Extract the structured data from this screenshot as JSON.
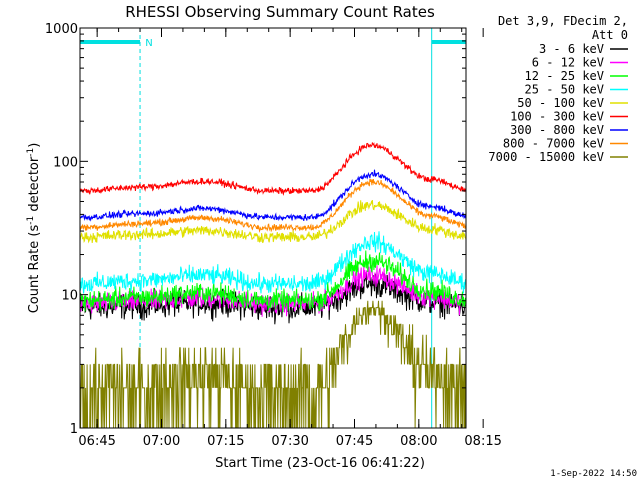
{
  "chart_data": {
    "type": "line",
    "title": "RHESSI Observing Summary Count Rates",
    "xlabel": "Start Time (23-Oct-16 06:41:22)",
    "ylabel": "Count Rate (s",
    "ylabel_sup": "-1",
    "ylabel_rest": " detector",
    "ylabel_sup2": "-1",
    "ylabel_close": ")",
    "y_scale": "log",
    "ylim": [
      1,
      1000
    ],
    "y_ticks": [
      {
        "value": 1,
        "label": "1"
      },
      {
        "value": 10,
        "label": "10"
      },
      {
        "value": 100,
        "label": "100"
      },
      {
        "value": 1000,
        "label": "1000"
      }
    ],
    "xlim_minutes": [
      6.0,
      96.0
    ],
    "x_ticks": [
      {
        "minute": 10.0,
        "label": "06:45"
      },
      {
        "minute": 25.0,
        "label": "07:00"
      },
      {
        "minute": 40.0,
        "label": "07:15"
      },
      {
        "minute": 55.0,
        "label": "07:30"
      },
      {
        "minute": 70.0,
        "label": "07:45"
      },
      {
        "minute": 85.0,
        "label": "08:00"
      },
      {
        "minute": 100.0,
        "label": "08:15"
      }
    ],
    "legend": {
      "placement": "right",
      "header_line1": "Det 3,9, FDecim 2,",
      "header_line2": "Att 0"
    },
    "series": [
      {
        "name": "3 - 6 keV",
        "color": "#000000",
        "base": 8.0,
        "peak": 12.0,
        "noise": 0.28
      },
      {
        "name": "6 - 12 keV",
        "color": "#ff00ff",
        "base": 8.5,
        "peak": 14.0,
        "noise": 0.22
      },
      {
        "name": "12 - 25 keV",
        "color": "#00ff00",
        "base": 9.0,
        "peak": 18.0,
        "noise": 0.22
      },
      {
        "name": "25 - 50 keV",
        "color": "#00ffff",
        "base": 12.0,
        "peak": 25.0,
        "noise": 0.2
      },
      {
        "name": "50 - 100 keV",
        "color": "#e0e000",
        "base": 27.0,
        "peak": 47.0,
        "noise": 0.12
      },
      {
        "name": "100 - 300 keV",
        "color": "#ff0000",
        "base": 60.0,
        "peak": 132.0,
        "noise": 0.07
      },
      {
        "name": "300 - 800 keV",
        "color": "#0000ff",
        "base": 38.0,
        "peak": 80.0,
        "noise": 0.07
      },
      {
        "name": "800 - 7000 keV",
        "color": "#ff8800",
        "base": 32.0,
        "peak": 70.0,
        "noise": 0.07
      },
      {
        "name": "7000 - 15000 keV",
        "color": "#808000",
        "base": 2.0,
        "peak": 8.0,
        "noise": 0.45
      }
    ],
    "time_profile": [
      {
        "minute": 6.0,
        "factor": 1.0
      },
      {
        "minute": 20.0,
        "factor": 1.1
      },
      {
        "minute": 35.0,
        "factor": 1.25
      },
      {
        "minute": 50.0,
        "factor": 1.0
      },
      {
        "minute": 60.0,
        "factor": 1.0
      },
      {
        "minute": 74.0,
        "factor": 2.2
      },
      {
        "minute": 88.0,
        "factor": 1.3
      },
      {
        "minute": 96.0,
        "factor": 1.05
      }
    ],
    "night_intervals_minutes": [
      [
        6.0,
        20.0
      ],
      [
        88.0,
        96.0
      ]
    ],
    "saa_markers": [
      {
        "minute": 20.5,
        "label": "N"
      }
    ],
    "footer_date": "1-Sep-2022 14:50"
  }
}
